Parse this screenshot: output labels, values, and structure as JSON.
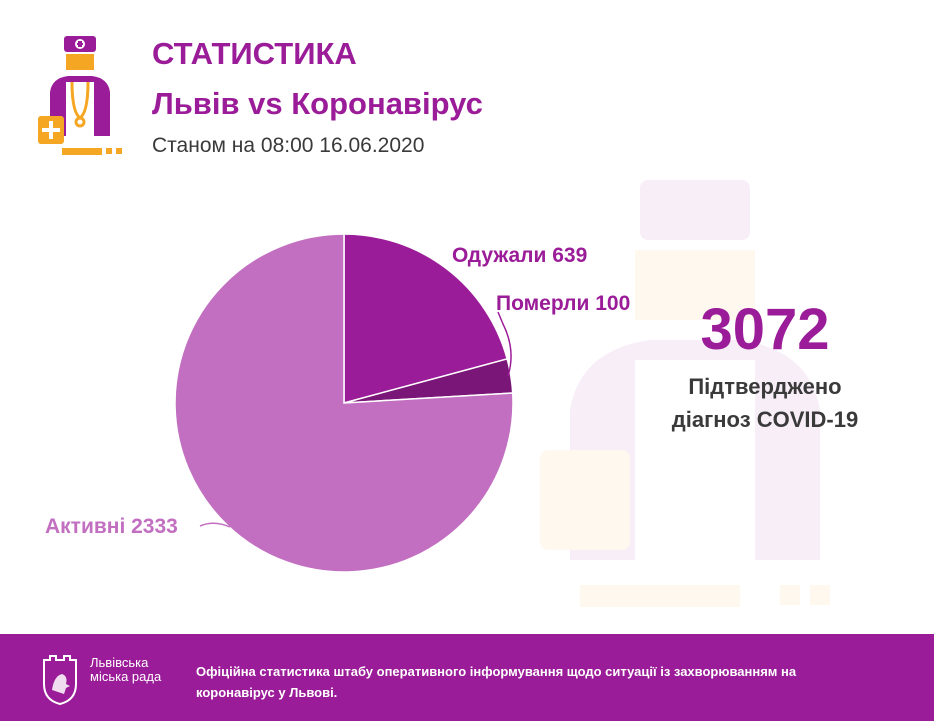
{
  "header": {
    "title": "СТАТИСТИКА",
    "subtitle": "Львів vs Коронавірус",
    "date": "Станом на 08:00 16.06.2020"
  },
  "summary": {
    "total": "3072",
    "label_line1": "Підтверджено",
    "label_line2": "діагноз COVID-19"
  },
  "chart_data": {
    "type": "pie",
    "slices": [
      {
        "label": "Одужали",
        "value": 639,
        "display": "Одужали 639",
        "color": "#9b1c98"
      },
      {
        "label": "Померли",
        "value": 100,
        "display": "Померли 100",
        "color": "#7a1678"
      },
      {
        "label": "Активні",
        "value": 2333,
        "display": "Активні 2333",
        "color": "#c26fc1"
      }
    ]
  },
  "footer": {
    "org_name": "Львівська міська рада",
    "text": "Офіційна статистика штабу оперативного інформування щодо ситуації із захворюванням на коронавірус у Львові."
  },
  "colors": {
    "accent": "#9b1c98",
    "orange": "#f5a623",
    "text": "#3a3a3a"
  }
}
